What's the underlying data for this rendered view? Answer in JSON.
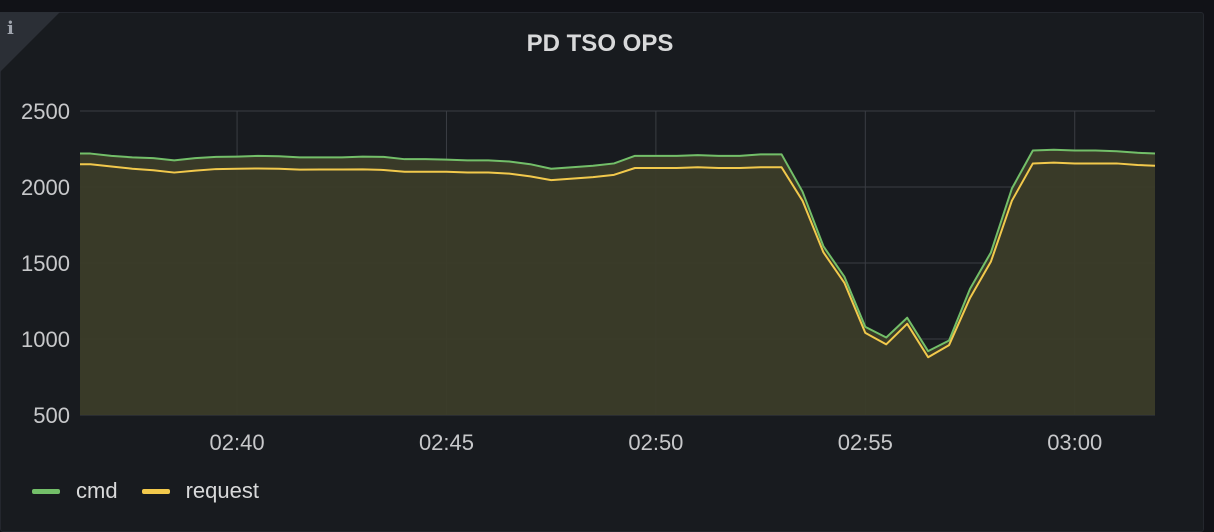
{
  "panel": {
    "title": "PD TSO OPS",
    "info_icon": "i"
  },
  "chart_data": {
    "type": "line",
    "title": "PD TSO OPS",
    "xlabel": "",
    "ylabel": "",
    "ylim": [
      500,
      2500
    ],
    "xlim": [
      "02:36:15",
      "02:61:55"
    ],
    "x_ticks": [
      "02:40",
      "02:45",
      "02:50",
      "02:55",
      "03:00"
    ],
    "y_ticks": [
      500,
      1000,
      1500,
      2000,
      2500
    ],
    "grid": true,
    "legend": "bottom-left",
    "colors": {
      "cmd": "#73bf69",
      "request": "#f2c94c",
      "fill": "#3b3c29"
    },
    "x": [
      "02:36:15",
      "02:36:30",
      "02:37:00",
      "02:37:30",
      "02:38:00",
      "02:38:30",
      "02:39:00",
      "02:39:30",
      "02:40:00",
      "02:40:30",
      "02:41:00",
      "02:41:30",
      "02:42:00",
      "02:42:30",
      "02:43:00",
      "02:43:30",
      "02:44:00",
      "02:44:30",
      "02:45:00",
      "02:45:30",
      "02:46:00",
      "02:46:30",
      "02:47:00",
      "02:47:30",
      "02:48:00",
      "02:48:30",
      "02:49:00",
      "02:49:30",
      "02:50:00",
      "02:50:30",
      "02:51:00",
      "02:51:30",
      "02:52:00",
      "02:52:30",
      "02:53:00",
      "02:53:30",
      "02:54:00",
      "02:54:30",
      "02:55:00",
      "02:55:30",
      "02:56:00",
      "02:56:30",
      "02:57:00",
      "02:57:30",
      "02:58:00",
      "02:58:30",
      "02:59:00",
      "02:59:30",
      "03:00:00",
      "03:00:30",
      "03:01:00",
      "03:01:30",
      "03:01:55"
    ],
    "series": [
      {
        "name": "cmd",
        "values": [
          2220,
          2220,
          2205,
          2195,
          2190,
          2175,
          2190,
          2198,
          2200,
          2205,
          2202,
          2195,
          2195,
          2195,
          2200,
          2198,
          2183,
          2183,
          2180,
          2175,
          2175,
          2168,
          2150,
          2120,
          2130,
          2140,
          2155,
          2205,
          2205,
          2205,
          2210,
          2205,
          2205,
          2215,
          2215,
          1970,
          1610,
          1410,
          1080,
          1010,
          1140,
          920,
          990,
          1330,
          1570,
          1990,
          2240,
          2245,
          2240,
          2240,
          2235,
          2225,
          2220
        ]
      },
      {
        "name": "request",
        "values": [
          2150,
          2150,
          2135,
          2120,
          2110,
          2095,
          2108,
          2118,
          2120,
          2122,
          2120,
          2114,
          2115,
          2115,
          2116,
          2112,
          2100,
          2100,
          2100,
          2095,
          2095,
          2088,
          2070,
          2045,
          2055,
          2065,
          2080,
          2125,
          2125,
          2125,
          2130,
          2125,
          2125,
          2130,
          2130,
          1910,
          1570,
          1370,
          1040,
          965,
          1100,
          880,
          960,
          1270,
          1510,
          1910,
          2155,
          2160,
          2155,
          2155,
          2155,
          2145,
          2140
        ]
      }
    ]
  },
  "legend": {
    "items": [
      {
        "label": "cmd",
        "color": "#73bf69"
      },
      {
        "label": "request",
        "color": "#f2c94c"
      }
    ]
  }
}
